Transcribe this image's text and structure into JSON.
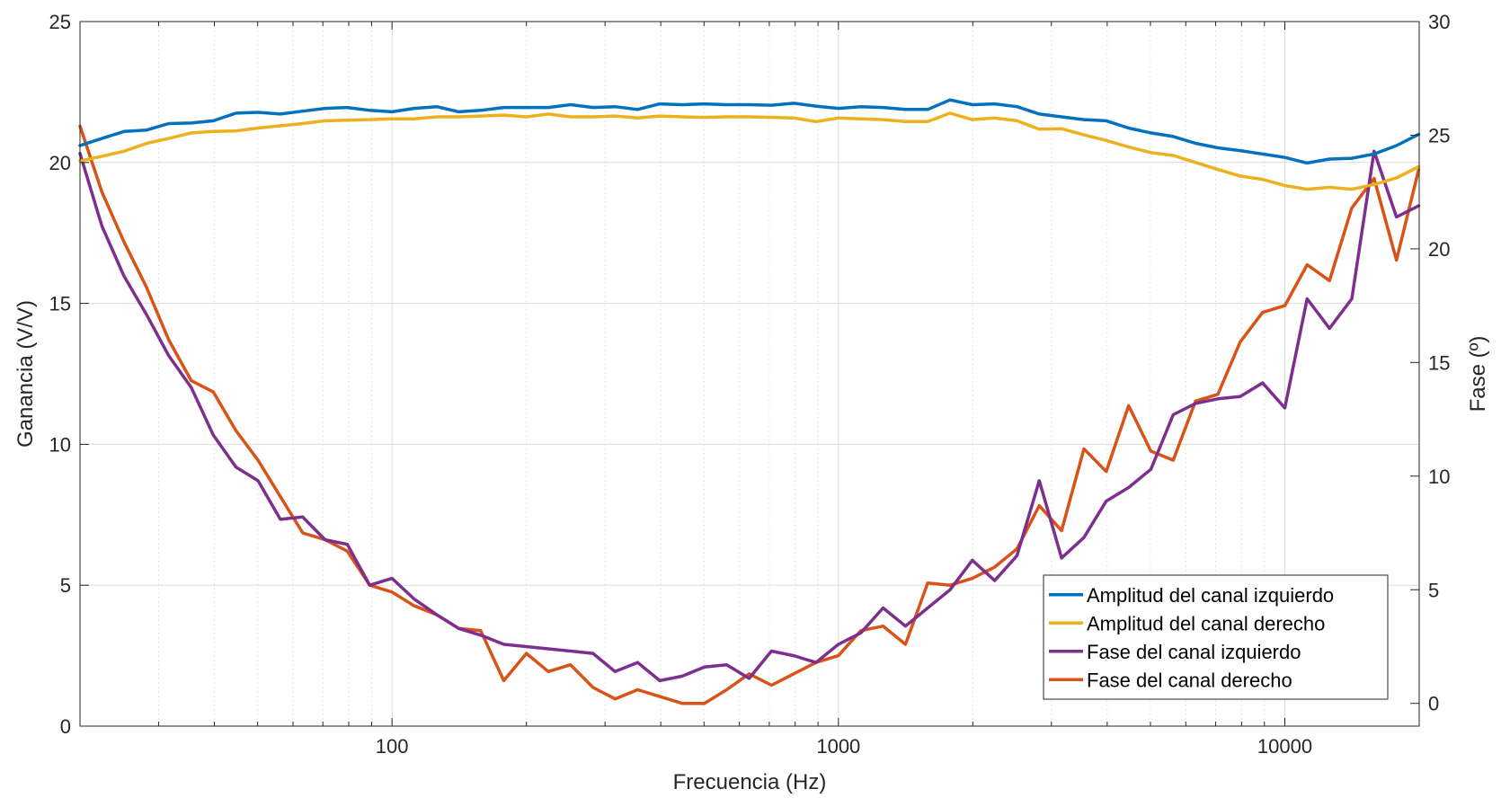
{
  "chart_data": {
    "type": "line",
    "x_scale": "log",
    "grid": true,
    "legend_position": "bottom-right",
    "xlabel": "Frecuencia (Hz)",
    "ylabel_left": "Ganancia (V/V)",
    "ylabel_right": "Fase (º)",
    "xlim": [
      20,
      20000
    ],
    "ylim_left": [
      0,
      25
    ],
    "ylim_right": [
      -1,
      30
    ],
    "x_ticks": [
      100,
      1000,
      10000
    ],
    "x_tick_labels": [
      "100",
      "1000",
      "10000"
    ],
    "y_left_ticks": [
      0,
      5,
      10,
      15,
      20,
      25
    ],
    "y_left_tick_labels": [
      "0",
      "5",
      "10",
      "15",
      "20",
      "25"
    ],
    "y_right_ticks": [
      0,
      5,
      10,
      15,
      20,
      25,
      30
    ],
    "y_right_tick_labels": [
      "0",
      "5",
      "10",
      "15",
      "20",
      "25",
      "30"
    ],
    "x": [
      20,
      22.4,
      25.1,
      28.2,
      31.6,
      35.5,
      39.8,
      44.7,
      50.1,
      56.2,
      63.1,
      70.8,
      79.4,
      89.1,
      100,
      112,
      126,
      141,
      158,
      178,
      200,
      224,
      251,
      282,
      316,
      355,
      398,
      447,
      501,
      562,
      631,
      708,
      794,
      891,
      1000,
      1122,
      1259,
      1413,
      1585,
      1778,
      1995,
      2239,
      2512,
      2818,
      3162,
      3548,
      3981,
      4467,
      5012,
      5623,
      6310,
      7079,
      7943,
      8913,
      10000,
      11220,
      12589,
      14125,
      15849,
      17783,
      19953
    ],
    "series": [
      {
        "name": "Amplitud del canal izquierdo",
        "axis": "left",
        "color": "#0072BD",
        "values": [
          20.6,
          20.85,
          21.1,
          21.15,
          21.38,
          21.4,
          21.48,
          21.75,
          21.78,
          21.72,
          21.82,
          21.92,
          21.95,
          21.85,
          21.8,
          21.92,
          21.98,
          21.8,
          21.85,
          21.95,
          21.95,
          21.95,
          22.05,
          21.95,
          21.98,
          21.88,
          22.08,
          22.05,
          22.08,
          22.05,
          22.05,
          22.03,
          22.1,
          22.0,
          21.92,
          21.98,
          21.95,
          21.88,
          21.88,
          22.22,
          22.05,
          22.08,
          21.98,
          21.72,
          21.62,
          21.52,
          21.48,
          21.22,
          21.05,
          20.92,
          20.68,
          20.52,
          20.42,
          20.3,
          20.18,
          19.98,
          20.12,
          20.15,
          20.3,
          20.6,
          21.0
        ]
      },
      {
        "name": "Amplitud del canal derecho",
        "axis": "left",
        "color": "#EDB120",
        "values": [
          20.05,
          20.22,
          20.4,
          20.68,
          20.85,
          21.05,
          21.1,
          21.12,
          21.22,
          21.3,
          21.38,
          21.48,
          21.5,
          21.52,
          21.55,
          21.55,
          21.62,
          21.62,
          21.65,
          21.68,
          21.62,
          21.72,
          21.62,
          21.62,
          21.65,
          21.58,
          21.65,
          21.62,
          21.6,
          21.62,
          21.62,
          21.6,
          21.58,
          21.45,
          21.58,
          21.55,
          21.52,
          21.45,
          21.45,
          21.75,
          21.52,
          21.58,
          21.48,
          21.18,
          21.2,
          20.98,
          20.78,
          20.55,
          20.35,
          20.25,
          20.0,
          19.75,
          19.52,
          19.4,
          19.18,
          19.05,
          19.12,
          19.05,
          19.22,
          19.45,
          19.85
        ]
      },
      {
        "name": "Fase del canal izquierdo",
        "axis": "right",
        "color": "#7E2F8E",
        "values": [
          24.2,
          21.0,
          18.8,
          17.1,
          15.3,
          13.9,
          11.8,
          10.4,
          9.8,
          8.1,
          8.2,
          7.2,
          7.0,
          5.2,
          5.5,
          4.6,
          3.9,
          3.3,
          3.0,
          2.6,
          2.5,
          2.4,
          2.3,
          2.2,
          1.4,
          1.8,
          1.0,
          1.2,
          1.6,
          1.7,
          1.1,
          2.3,
          2.1,
          1.8,
          2.6,
          3.1,
          4.2,
          3.4,
          4.2,
          5.0,
          6.3,
          5.4,
          6.5,
          9.8,
          6.4,
          7.3,
          8.9,
          9.5,
          10.3,
          12.7,
          13.2,
          13.4,
          13.5,
          14.1,
          13.0,
          17.8,
          16.5,
          17.8,
          24.3,
          21.4,
          21.9
        ]
      },
      {
        "name": "Fase del canal derecho",
        "axis": "right",
        "color": "#D95319",
        "values": [
          25.4,
          22.5,
          20.3,
          18.3,
          16.0,
          14.2,
          13.7,
          12.0,
          10.7,
          9.1,
          7.5,
          7.2,
          6.7,
          5.2,
          4.9,
          4.3,
          3.9,
          3.3,
          3.2,
          1.0,
          2.2,
          1.4,
          1.7,
          0.7,
          0.2,
          0.6,
          0.3,
          0.0,
          0.0,
          0.6,
          1.3,
          0.8,
          1.3,
          1.8,
          2.1,
          3.2,
          3.4,
          2.6,
          5.3,
          5.2,
          5.5,
          6.0,
          6.8,
          8.7,
          7.6,
          11.2,
          10.2,
          13.1,
          11.1,
          10.7,
          13.3,
          13.6,
          15.9,
          17.2,
          17.5,
          19.3,
          18.6,
          21.8,
          23.1,
          19.5,
          23.5
        ]
      }
    ]
  }
}
